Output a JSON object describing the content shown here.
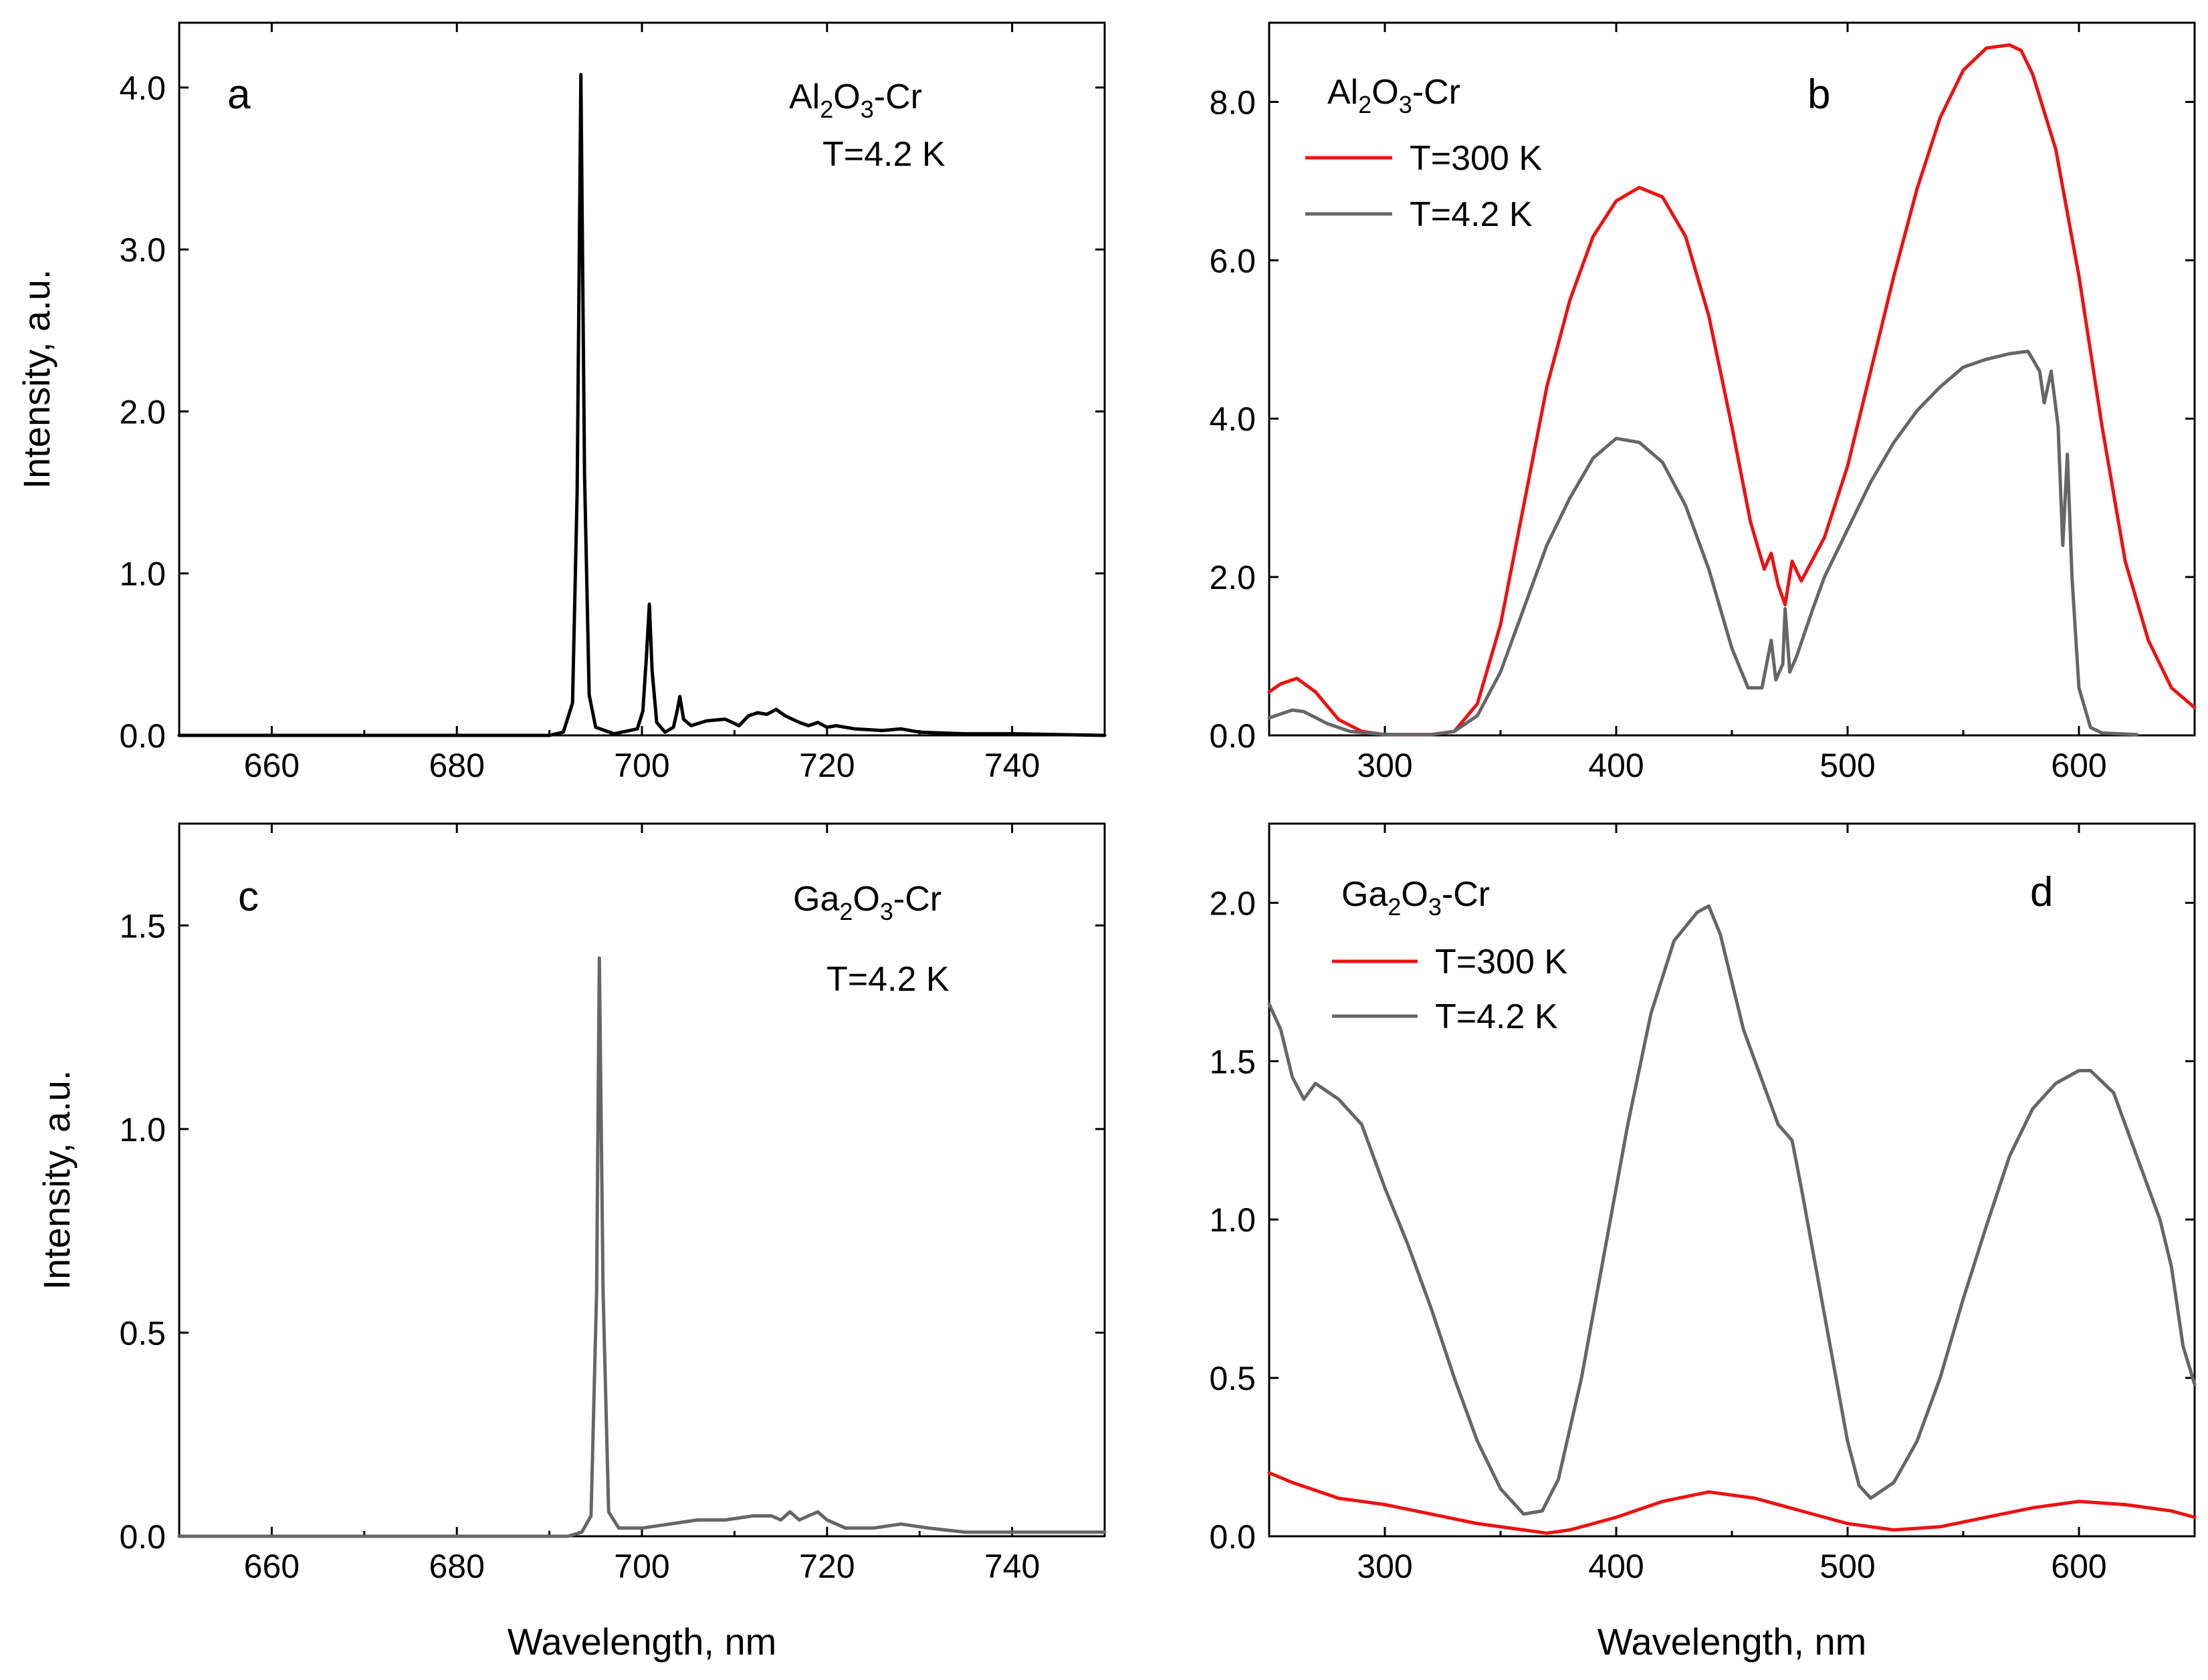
{
  "chart_data": [
    {
      "panel": "a",
      "type": "line",
      "xlabel": "",
      "ylabel": "Intensity, a.u.",
      "xlim": [
        650,
        750
      ],
      "ylim": [
        0,
        4.4
      ],
      "xticks": [
        660,
        680,
        700,
        720,
        740
      ],
      "xtick_labels": [
        "660",
        "680",
        "700",
        "720",
        "740"
      ],
      "yticks": [
        0,
        1,
        2,
        3,
        4
      ],
      "ytick_labels": [
        "0.0",
        "1.0",
        "2.0",
        "3.0",
        "4.0"
      ],
      "annotation": {
        "material": "Al2O3-Cr",
        "formula_parts": [
          "Al",
          "2",
          "O",
          "3",
          "-Cr"
        ],
        "temperature": "T=4.2 K"
      },
      "legend": null,
      "series": [
        {
          "color": "#000000",
          "points": [
            [
              650,
              0
            ],
            [
              690,
              0
            ],
            [
              691.5,
              0.02
            ],
            [
              692.5,
              0.2
            ],
            [
              693,
              1.5
            ],
            [
              693.4,
              4.08
            ],
            [
              693.8,
              1.6
            ],
            [
              694.3,
              0.25
            ],
            [
              695,
              0.05
            ],
            [
              697,
              0.01
            ],
            [
              699.5,
              0.04
            ],
            [
              700.1,
              0.15
            ],
            [
              700.5,
              0.5
            ],
            [
              700.8,
              0.81
            ],
            [
              701.1,
              0.4
            ],
            [
              701.6,
              0.08
            ],
            [
              702.5,
              0.02
            ],
            [
              703.4,
              0.05
            ],
            [
              703.8,
              0.15
            ],
            [
              704.1,
              0.24
            ],
            [
              704.5,
              0.1
            ],
            [
              705.3,
              0.06
            ],
            [
              707,
              0.09
            ],
            [
              709,
              0.1
            ],
            [
              710.5,
              0.06
            ],
            [
              711.5,
              0.12
            ],
            [
              712.5,
              0.14
            ],
            [
              713.5,
              0.13
            ],
            [
              714.5,
              0.16
            ],
            [
              715.5,
              0.12
            ],
            [
              717,
              0.08
            ],
            [
              718,
              0.06
            ],
            [
              719,
              0.08
            ],
            [
              720,
              0.05
            ],
            [
              721,
              0.06
            ],
            [
              723,
              0.04
            ],
            [
              726,
              0.03
            ],
            [
              728,
              0.04
            ],
            [
              730,
              0.02
            ],
            [
              735,
              0.01
            ],
            [
              740,
              0.01
            ],
            [
              750,
              0
            ]
          ]
        }
      ]
    },
    {
      "panel": "b",
      "type": "line",
      "xlabel": "",
      "ylabel": "",
      "xlim": [
        250,
        650
      ],
      "ylim": [
        0,
        9.0
      ],
      "xticks": [
        300,
        400,
        500,
        600
      ],
      "xtick_labels": [
        "300",
        "400",
        "500",
        "600"
      ],
      "yticks": [
        0,
        2,
        4,
        6,
        8
      ],
      "ytick_labels": [
        "0.0",
        "2.0",
        "4.0",
        "6.0",
        "8.0"
      ],
      "annotation": {
        "material": "Al2O3-Cr",
        "formula_parts": [
          "Al",
          "2",
          "O",
          "3",
          "-Cr"
        ]
      },
      "legend": {
        "position": "top-left"
      },
      "series": [
        {
          "name": "T=300 K",
          "color": "#ee1111",
          "points": [
            [
              250,
              0.55
            ],
            [
              255,
              0.65
            ],
            [
              262,
              0.72
            ],
            [
              270,
              0.55
            ],
            [
              280,
              0.2
            ],
            [
              290,
              0.05
            ],
            [
              300,
              0.01
            ],
            [
              320,
              0.01
            ],
            [
              330,
              0.05
            ],
            [
              340,
              0.4
            ],
            [
              350,
              1.4
            ],
            [
              360,
              2.9
            ],
            [
              370,
              4.4
            ],
            [
              380,
              5.5
            ],
            [
              390,
              6.3
            ],
            [
              400,
              6.75
            ],
            [
              410,
              6.92
            ],
            [
              420,
              6.8
            ],
            [
              430,
              6.3
            ],
            [
              440,
              5.3
            ],
            [
              450,
              3.9
            ],
            [
              458,
              2.7
            ],
            [
              464,
              2.1
            ],
            [
              467,
              2.3
            ],
            [
              470,
              1.9
            ],
            [
              473,
              1.65
            ],
            [
              476,
              2.2
            ],
            [
              480,
              1.95
            ],
            [
              490,
              2.5
            ],
            [
              500,
              3.4
            ],
            [
              510,
              4.6
            ],
            [
              520,
              5.8
            ],
            [
              530,
              6.9
            ],
            [
              540,
              7.8
            ],
            [
              550,
              8.4
            ],
            [
              560,
              8.68
            ],
            [
              570,
              8.72
            ],
            [
              575,
              8.65
            ],
            [
              580,
              8.35
            ],
            [
              590,
              7.4
            ],
            [
              600,
              5.8
            ],
            [
              610,
              3.9
            ],
            [
              620,
              2.2
            ],
            [
              630,
              1.2
            ],
            [
              640,
              0.6
            ],
            [
              650,
              0.35
            ]
          ]
        },
        {
          "name": "T=4.2 K",
          "color": "#666666",
          "points": [
            [
              250,
              0.22
            ],
            [
              260,
              0.32
            ],
            [
              265,
              0.3
            ],
            [
              275,
              0.15
            ],
            [
              285,
              0.05
            ],
            [
              300,
              0.01
            ],
            [
              320,
              0.01
            ],
            [
              330,
              0.05
            ],
            [
              340,
              0.25
            ],
            [
              350,
              0.8
            ],
            [
              360,
              1.6
            ],
            [
              370,
              2.4
            ],
            [
              380,
              3.0
            ],
            [
              390,
              3.5
            ],
            [
              400,
              3.75
            ],
            [
              410,
              3.7
            ],
            [
              420,
              3.45
            ],
            [
              430,
              2.9
            ],
            [
              440,
              2.1
            ],
            [
              450,
              1.1
            ],
            [
              457,
              0.6
            ],
            [
              463,
              0.6
            ],
            [
              467,
              1.2
            ],
            [
              469,
              0.7
            ],
            [
              472,
              0.9
            ],
            [
              473,
              1.6
            ],
            [
              475,
              0.8
            ],
            [
              478,
              1.0
            ],
            [
              485,
              1.6
            ],
            [
              490,
              2.0
            ],
            [
              500,
              2.6
            ],
            [
              510,
              3.2
            ],
            [
              520,
              3.7
            ],
            [
              530,
              4.1
            ],
            [
              540,
              4.4
            ],
            [
              550,
              4.65
            ],
            [
              560,
              4.75
            ],
            [
              570,
              4.82
            ],
            [
              578,
              4.85
            ],
            [
              583,
              4.6
            ],
            [
              585,
              4.2
            ],
            [
              588,
              4.6
            ],
            [
              591,
              3.9
            ],
            [
              593,
              2.4
            ],
            [
              595,
              3.55
            ],
            [
              597,
              2.0
            ],
            [
              600,
              0.6
            ],
            [
              605,
              0.1
            ],
            [
              610,
              0.03
            ],
            [
              625,
              0.01
            ]
          ]
        }
      ]
    },
    {
      "panel": "c",
      "type": "line",
      "xlabel": "Wavelength, nm",
      "ylabel": "Intensity, a.u.",
      "xlim": [
        650,
        750
      ],
      "ylim": [
        0,
        1.75
      ],
      "xticks": [
        660,
        680,
        700,
        720,
        740
      ],
      "xtick_labels": [
        "660",
        "680",
        "700",
        "720",
        "740"
      ],
      "yticks": [
        0,
        0.5,
        1.0,
        1.5
      ],
      "ytick_labels": [
        "0.0",
        "0.5",
        "1.0",
        "1.5"
      ],
      "annotation": {
        "material": "Ga2O3-Cr",
        "formula_parts": [
          "Ga",
          "2",
          "O",
          "3",
          "-Cr"
        ],
        "temperature": "T=4.2 K"
      },
      "legend": null,
      "series": [
        {
          "color": "#666666",
          "points": [
            [
              650,
              0
            ],
            [
              692,
              0
            ],
            [
              693.5,
              0.01
            ],
            [
              694.5,
              0.05
            ],
            [
              695.1,
              0.6
            ],
            [
              695.4,
              1.42
            ],
            [
              695.8,
              0.6
            ],
            [
              696.4,
              0.06
            ],
            [
              697.5,
              0.02
            ],
            [
              700,
              0.02
            ],
            [
              703,
              0.03
            ],
            [
              706,
              0.04
            ],
            [
              709,
              0.04
            ],
            [
              712,
              0.05
            ],
            [
              714,
              0.05
            ],
            [
              715,
              0.04
            ],
            [
              716,
              0.06
            ],
            [
              717,
              0.04
            ],
            [
              718,
              0.05
            ],
            [
              719,
              0.06
            ],
            [
              720,
              0.04
            ],
            [
              722,
              0.02
            ],
            [
              725,
              0.02
            ],
            [
              728,
              0.03
            ],
            [
              731,
              0.02
            ],
            [
              735,
              0.01
            ],
            [
              740,
              0.01
            ],
            [
              750,
              0.01
            ]
          ]
        }
      ]
    },
    {
      "panel": "d",
      "type": "line",
      "xlabel": "Wavelength, nm",
      "ylabel": "",
      "xlim": [
        250,
        650
      ],
      "ylim": [
        0,
        2.25
      ],
      "xticks": [
        300,
        400,
        500,
        600
      ],
      "xtick_labels": [
        "300",
        "400",
        "500",
        "600"
      ],
      "yticks": [
        0,
        0.5,
        1.0,
        1.5,
        2.0
      ],
      "ytick_labels": [
        "0.0",
        "0.5",
        "1.0",
        "1.5",
        "2.0"
      ],
      "annotation": {
        "material": "Ga2O3-Cr",
        "formula_parts": [
          "Ga",
          "2",
          "O",
          "3",
          "-Cr"
        ]
      },
      "legend": {
        "position": "top-left"
      },
      "series": [
        {
          "name": "T=300 K",
          "color": "#ee1111",
          "points": [
            [
              250,
              0.2
            ],
            [
              260,
              0.17
            ],
            [
              280,
              0.12
            ],
            [
              300,
              0.1
            ],
            [
              320,
              0.07
            ],
            [
              340,
              0.04
            ],
            [
              360,
              0.02
            ],
            [
              370,
              0.01
            ],
            [
              380,
              0.02
            ],
            [
              400,
              0.06
            ],
            [
              420,
              0.11
            ],
            [
              440,
              0.14
            ],
            [
              460,
              0.12
            ],
            [
              480,
              0.08
            ],
            [
              500,
              0.04
            ],
            [
              520,
              0.02
            ],
            [
              540,
              0.03
            ],
            [
              560,
              0.06
            ],
            [
              580,
              0.09
            ],
            [
              600,
              0.11
            ],
            [
              620,
              0.1
            ],
            [
              640,
              0.08
            ],
            [
              650,
              0.06
            ]
          ]
        },
        {
          "name": "T=4.2 K",
          "color": "#666666",
          "points": [
            [
              250,
              1.68
            ],
            [
              255,
              1.6
            ],
            [
              260,
              1.45
            ],
            [
              265,
              1.38
            ],
            [
              270,
              1.43
            ],
            [
              280,
              1.38
            ],
            [
              290,
              1.3
            ],
            [
              300,
              1.1
            ],
            [
              310,
              0.92
            ],
            [
              320,
              0.72
            ],
            [
              330,
              0.5
            ],
            [
              340,
              0.3
            ],
            [
              350,
              0.15
            ],
            [
              360,
              0.07
            ],
            [
              368,
              0.08
            ],
            [
              375,
              0.18
            ],
            [
              385,
              0.5
            ],
            [
              395,
              0.9
            ],
            [
              405,
              1.3
            ],
            [
              415,
              1.65
            ],
            [
              425,
              1.88
            ],
            [
              435,
              1.97
            ],
            [
              440,
              1.99
            ],
            [
              445,
              1.9
            ],
            [
              455,
              1.6
            ],
            [
              465,
              1.4
            ],
            [
              470,
              1.3
            ],
            [
              476,
              1.25
            ],
            [
              480,
              1.1
            ],
            [
              490,
              0.7
            ],
            [
              500,
              0.3
            ],
            [
              505,
              0.16
            ],
            [
              510,
              0.12
            ],
            [
              520,
              0.17
            ],
            [
              530,
              0.3
            ],
            [
              540,
              0.5
            ],
            [
              550,
              0.75
            ],
            [
              560,
              0.98
            ],
            [
              570,
              1.2
            ],
            [
              580,
              1.35
            ],
            [
              590,
              1.43
            ],
            [
              600,
              1.47
            ],
            [
              605,
              1.47
            ],
            [
              615,
              1.4
            ],
            [
              625,
              1.2
            ],
            [
              635,
              1.0
            ],
            [
              640,
              0.85
            ],
            [
              645,
              0.6
            ],
            [
              650,
              0.48
            ]
          ]
        }
      ]
    }
  ]
}
